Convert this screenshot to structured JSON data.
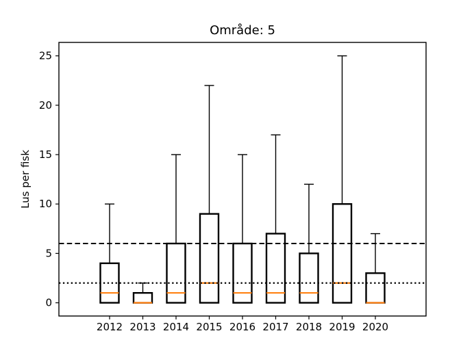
{
  "figure": {
    "title": "Område: 5",
    "y_axis_label": "Lus per fisk"
  },
  "chart_data": {
    "type": "boxplot",
    "title": "Område: 5",
    "xlabel": "",
    "ylabel": "Lus per fisk",
    "categories": [
      "2012",
      "2013",
      "2014",
      "2015",
      "2016",
      "2017",
      "2018",
      "2019",
      "2020"
    ],
    "yticks": [
      0,
      5,
      10,
      15,
      20,
      25
    ],
    "ylim": [
      -1.34,
      26.36
    ],
    "grid": false,
    "legend": "none",
    "boxes": [
      {
        "year": "2012",
        "whisker_low": 0,
        "q1": 0,
        "median": 1,
        "q3": 4,
        "whisker_high": 10
      },
      {
        "year": "2013",
        "whisker_low": 0,
        "q1": 0,
        "median": 0,
        "q3": 1,
        "whisker_high": 2
      },
      {
        "year": "2014",
        "whisker_low": 0,
        "q1": 0,
        "median": 1,
        "q3": 6,
        "whisker_high": 15
      },
      {
        "year": "2015",
        "whisker_low": 0,
        "q1": 0,
        "median": 2,
        "q3": 9,
        "whisker_high": 22
      },
      {
        "year": "2016",
        "whisker_low": 0,
        "q1": 0,
        "median": 1,
        "q3": 6,
        "whisker_high": 15
      },
      {
        "year": "2017",
        "whisker_low": 0,
        "q1": 0,
        "median": 1,
        "q3": 7,
        "whisker_high": 17
      },
      {
        "year": "2018",
        "whisker_low": 0,
        "q1": 0,
        "median": 1,
        "q3": 5,
        "whisker_high": 12
      },
      {
        "year": "2019",
        "whisker_low": 0,
        "q1": 0,
        "median": 2,
        "q3": 10,
        "whisker_high": 25
      },
      {
        "year": "2020",
        "whisker_low": 0,
        "q1": 0,
        "median": 0,
        "q3": 3,
        "whisker_high": 7
      }
    ],
    "reference_lines": [
      {
        "value": 6,
        "style": "dashed",
        "color": "#000000"
      },
      {
        "value": 2,
        "style": "dotted",
        "color": "#000000"
      }
    ],
    "colors": {
      "box_edge": "#000000",
      "whisker": "#000000",
      "median": "#ff7f0e",
      "axis": "#000000",
      "text": "#000000",
      "background": "#ffffff"
    }
  }
}
